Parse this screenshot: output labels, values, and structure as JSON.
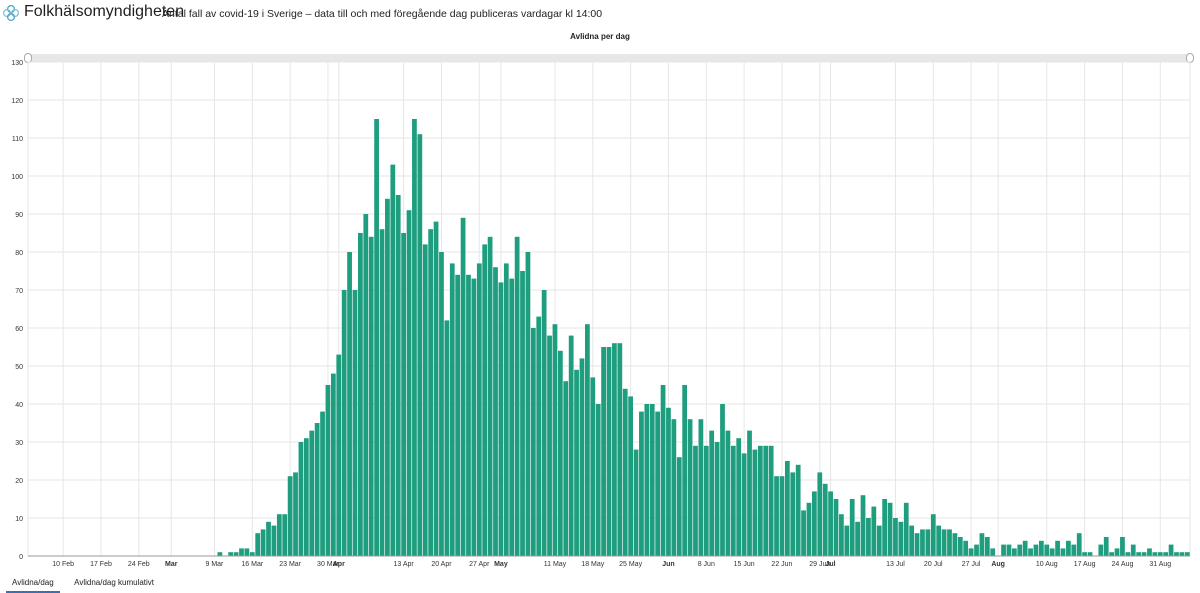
{
  "header": {
    "brand": "Folkhälsomyndigheten",
    "subtitle": "Antal fall av covid-19 i Sverige – data till och med föregående dag publiceras vardagar kl 14:00"
  },
  "tabs": [
    {
      "label": "Avlidna/dag",
      "active": true
    },
    {
      "label": "Avlidna/dag kumulativt",
      "active": false
    }
  ],
  "colors": {
    "bar": "#1e9e7e",
    "grid": "#e6e6e6",
    "axis": "#999999"
  },
  "chart_data": {
    "type": "bar",
    "title": "Avlidna per dag",
    "xlabel": "",
    "ylabel": "",
    "ylim": [
      0,
      130
    ],
    "yticks": [
      0,
      10,
      20,
      30,
      40,
      50,
      60,
      70,
      80,
      90,
      100,
      110,
      120,
      130
    ],
    "start_date": "2020-02-04",
    "end_date": "2020-09-04",
    "xticks": [
      {
        "label": "10 Feb",
        "day": 6,
        "bold": false
      },
      {
        "label": "17 Feb",
        "day": 13,
        "bold": false
      },
      {
        "label": "24 Feb",
        "day": 20,
        "bold": false
      },
      {
        "label": "Mar",
        "day": 26,
        "bold": true
      },
      {
        "label": "9 Mar",
        "day": 34,
        "bold": false
      },
      {
        "label": "16 Mar",
        "day": 41,
        "bold": false
      },
      {
        "label": "23 Mar",
        "day": 48,
        "bold": false
      },
      {
        "label": "30 Mar",
        "day": 55,
        "bold": false
      },
      {
        "label": "Apr",
        "day": 57,
        "bold": true
      },
      {
        "label": "13 Apr",
        "day": 69,
        "bold": false
      },
      {
        "label": "20 Apr",
        "day": 76,
        "bold": false
      },
      {
        "label": "27 Apr",
        "day": 83,
        "bold": false
      },
      {
        "label": "May",
        "day": 87,
        "bold": true
      },
      {
        "label": "11 May",
        "day": 97,
        "bold": false
      },
      {
        "label": "18 May",
        "day": 104,
        "bold": false
      },
      {
        "label": "25 May",
        "day": 111,
        "bold": false
      },
      {
        "label": "Jun",
        "day": 118,
        "bold": true
      },
      {
        "label": "8 Jun",
        "day": 125,
        "bold": false
      },
      {
        "label": "15 Jun",
        "day": 132,
        "bold": false
      },
      {
        "label": "22 Jun",
        "day": 139,
        "bold": false
      },
      {
        "label": "29 Jun",
        "day": 146,
        "bold": false
      },
      {
        "label": "Jul",
        "day": 148,
        "bold": true
      },
      {
        "label": "13 Jul",
        "day": 160,
        "bold": false
      },
      {
        "label": "20 Jul",
        "day": 167,
        "bold": false
      },
      {
        "label": "27 Jul",
        "day": 174,
        "bold": false
      },
      {
        "label": "Aug",
        "day": 179,
        "bold": true
      },
      {
        "label": "10 Aug",
        "day": 188,
        "bold": false
      },
      {
        "label": "17 Aug",
        "day": 195,
        "bold": false
      },
      {
        "label": "24 Aug",
        "day": 202,
        "bold": false
      },
      {
        "label": "31 Aug",
        "day": 209,
        "bold": false
      }
    ],
    "values": [
      0,
      0,
      0,
      0,
      0,
      0,
      0,
      0,
      0,
      0,
      0,
      0,
      0,
      0,
      0,
      0,
      0,
      0,
      0,
      0,
      0,
      0,
      0,
      0,
      0,
      0,
      0,
      0,
      0,
      0,
      0,
      0,
      0,
      0,
      0,
      1,
      0,
      1,
      1,
      2,
      2,
      1,
      6,
      7,
      9,
      8,
      11,
      11,
      21,
      22,
      30,
      31,
      33,
      35,
      38,
      45,
      48,
      53,
      70,
      80,
      70,
      85,
      90,
      84,
      115,
      86,
      94,
      103,
      95,
      85,
      91,
      115,
      111,
      82,
      86,
      88,
      80,
      62,
      77,
      74,
      89,
      74,
      73,
      77,
      82,
      84,
      76,
      72,
      77,
      73,
      84,
      75,
      80,
      60,
      63,
      70,
      58,
      61,
      54,
      46,
      58,
      49,
      52,
      61,
      47,
      40,
      55,
      55,
      56,
      56,
      44,
      42,
      28,
      38,
      40,
      40,
      38,
      45,
      39,
      36,
      26,
      45,
      36,
      29,
      36,
      29,
      33,
      30,
      40,
      33,
      29,
      31,
      27,
      33,
      28,
      29,
      29,
      29,
      21,
      21,
      25,
      22,
      24,
      12,
      14,
      17,
      22,
      19,
      17,
      15,
      11,
      8,
      15,
      9,
      16,
      10,
      13,
      8,
      15,
      14,
      10,
      9,
      14,
      8,
      6,
      7,
      7,
      11,
      8,
      7,
      7,
      6,
      5,
      4,
      2,
      3,
      6,
      5,
      2,
      0,
      3,
      3,
      2,
      3,
      4,
      2,
      3,
      4,
      3,
      2,
      4,
      2,
      4,
      3,
      6,
      1,
      1,
      0,
      3,
      5,
      1,
      2,
      5,
      1,
      3,
      1,
      1,
      2,
      1,
      1,
      1,
      3,
      1,
      1,
      1
    ]
  }
}
